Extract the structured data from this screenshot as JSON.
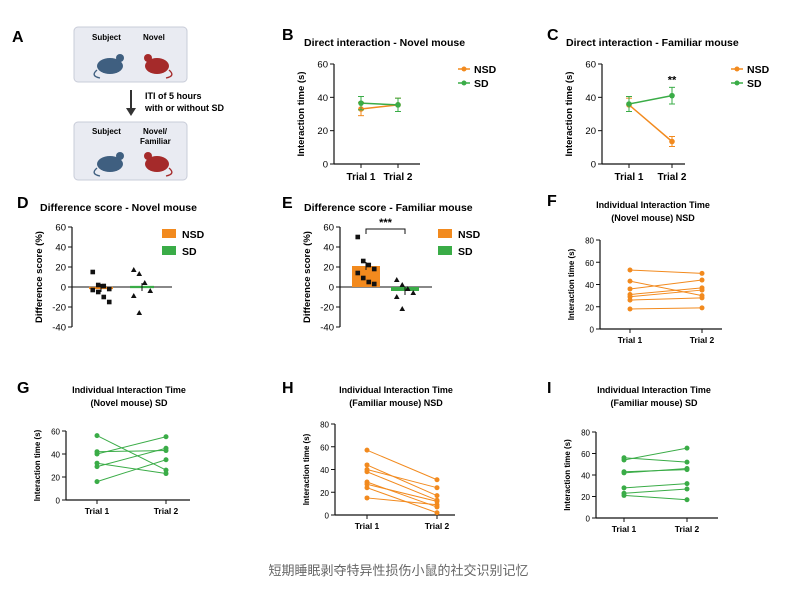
{
  "colors": {
    "nsd": "#f28a1e",
    "sd": "#3aac47",
    "axis": "#111111",
    "gray_line": "#999999"
  },
  "panel_a": {
    "letter": "A",
    "subject_label": "Subject",
    "novel_label": "Novel",
    "subject_label_2": "Subject",
    "novel_familiar_label_1": "Novel/",
    "novel_familiar_label_2": "Familiar",
    "iti_line_1": "ITI of 5 hours",
    "iti_line_2": "with or without SD"
  },
  "caption": "短期睡眠剥夺特异性损伤小鼠的社交识别记忆",
  "chart_data": [
    {
      "id": "B",
      "letter": "B",
      "type": "line",
      "title": "Direct interaction - Novel mouse",
      "ylabel": "Interaction time (s)",
      "ylim": [
        0,
        60
      ],
      "yticks": [
        0,
        20,
        40,
        60
      ],
      "categories": [
        "Trial 1",
        "Trial 2"
      ],
      "series": [
        {
          "name": "NSD",
          "color": "#f28a1e",
          "values": [
            33,
            35.5
          ],
          "err": [
            4,
            4
          ]
        },
        {
          "name": "SD",
          "color": "#3aac47",
          "values": [
            36.5,
            35.5
          ],
          "err": [
            4,
            4
          ]
        }
      ],
      "legend": [
        "NSD",
        "SD"
      ]
    },
    {
      "id": "C",
      "letter": "C",
      "type": "line",
      "title": "Direct interaction - Familiar mouse",
      "ylabel": "Interaction time (s)",
      "ylim": [
        0,
        60
      ],
      "yticks": [
        0,
        20,
        40,
        60
      ],
      "categories": [
        "Trial 1",
        "Trial 2"
      ],
      "series": [
        {
          "name": "NSD",
          "color": "#f28a1e",
          "values": [
            35.5,
            13.5
          ],
          "err": [
            4,
            3
          ]
        },
        {
          "name": "SD",
          "color": "#3aac47",
          "values": [
            36,
            41
          ],
          "err": [
            4.5,
            5
          ]
        }
      ],
      "annotation": "**",
      "legend": [
        "NSD",
        "SD"
      ]
    },
    {
      "id": "D",
      "letter": "D",
      "type": "scatter",
      "title": "Difference score - Novel mouse",
      "ylabel": "Difference score (%)",
      "ylim": [
        -40,
        60
      ],
      "yticks": [
        -40,
        -20,
        0,
        20,
        40,
        60
      ],
      "groups": [
        {
          "name": "NSD",
          "color": "#f28a1e",
          "mean": -1,
          "marker": "square",
          "points": [
            15,
            2,
            1,
            -2,
            -3,
            -5,
            -10,
            -15
          ]
        },
        {
          "name": "SD",
          "color": "#3aac47",
          "mean": 0,
          "marker": "triangle",
          "points": [
            17,
            13,
            4,
            -4,
            -9,
            -26
          ]
        }
      ],
      "legend": [
        "NSD",
        "SD"
      ]
    },
    {
      "id": "E",
      "letter": "E",
      "type": "bar",
      "title": "Difference score - Familiar mouse",
      "ylabel": "Difference score (%)",
      "ylim": [
        -40,
        60
      ],
      "yticks": [
        -40,
        -20,
        0,
        20,
        40,
        60
      ],
      "groups": [
        {
          "name": "NSD",
          "color": "#f28a1e",
          "mean": 21,
          "marker": "square",
          "points": [
            50,
            26,
            22,
            18,
            14,
            9,
            5,
            3
          ]
        },
        {
          "name": "SD",
          "color": "#3aac47",
          "mean": -4,
          "marker": "triangle",
          "points": [
            7,
            2,
            -2,
            -6,
            -10,
            -22
          ]
        }
      ],
      "annotation": "***",
      "legend": [
        "NSD",
        "SD"
      ]
    },
    {
      "id": "F",
      "letter": "F",
      "type": "line",
      "title": "Individual Interaction Time",
      "subtitle": "(Novel mouse) NSD",
      "ylabel": "Interaction time (s)",
      "ylim": [
        0,
        80
      ],
      "yticks": [
        0,
        20,
        40,
        60,
        80
      ],
      "categories": [
        "Trial 1",
        "Trial 2"
      ],
      "color": "#f28a1e",
      "pairs": [
        [
          53,
          50
        ],
        [
          43,
          30
        ],
        [
          36,
          44
        ],
        [
          31,
          37
        ],
        [
          29,
          35
        ],
        [
          26,
          28
        ],
        [
          18,
          19
        ]
      ]
    },
    {
      "id": "G",
      "letter": "G",
      "type": "line",
      "title": "Individual Interaction Time",
      "subtitle": "(Novel mouse) SD",
      "ylabel": "Interaction time (s)",
      "ylim": [
        0,
        60
      ],
      "yticks": [
        0,
        20,
        40,
        60
      ],
      "categories": [
        "Trial 1",
        "Trial 2"
      ],
      "color": "#3aac47",
      "pairs": [
        [
          56,
          26
        ],
        [
          42,
          43
        ],
        [
          40,
          55
        ],
        [
          32,
          23
        ],
        [
          29,
          45
        ],
        [
          16,
          35
        ]
      ]
    },
    {
      "id": "H",
      "letter": "H",
      "type": "line",
      "title": "Individual Interaction Time",
      "subtitle": "(Familiar mouse) NSD",
      "ylabel": "Interaction time (s)",
      "ylim": [
        0,
        80
      ],
      "yticks": [
        0,
        20,
        40,
        60,
        80
      ],
      "categories": [
        "Trial 1",
        "Trial 2"
      ],
      "color": "#f28a1e",
      "pairs": [
        [
          57,
          31
        ],
        [
          44,
          17
        ],
        [
          40,
          24
        ],
        [
          38,
          13
        ],
        [
          29,
          7
        ],
        [
          27,
          12
        ],
        [
          24,
          2
        ],
        [
          15,
          9
        ]
      ]
    },
    {
      "id": "I",
      "letter": "I",
      "type": "line",
      "title": "Individual Interaction Time",
      "subtitle": "(Familiar mouse) SD",
      "ylabel": "Interaction time (s)",
      "ylim": [
        0,
        80
      ],
      "yticks": [
        0,
        20,
        40,
        60,
        80
      ],
      "categories": [
        "Trial 1",
        "Trial 2"
      ],
      "color": "#3aac47",
      "pairs": [
        [
          56,
          52
        ],
        [
          54,
          65
        ],
        [
          43,
          45
        ],
        [
          42,
          46
        ],
        [
          28,
          32
        ],
        [
          23,
          27
        ],
        [
          21,
          17
        ]
      ]
    }
  ]
}
